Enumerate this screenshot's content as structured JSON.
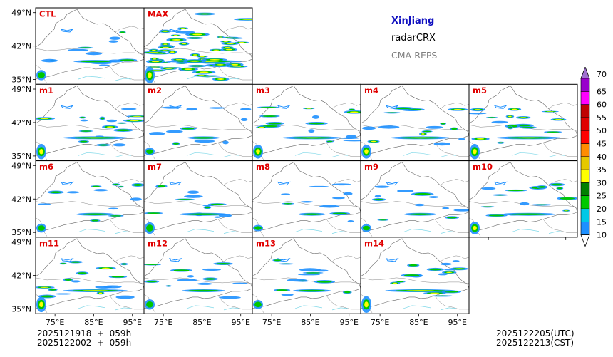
{
  "header": {
    "region": "XinJiang",
    "variable": "radarCRX",
    "model": "CMA-REPS"
  },
  "footer": {
    "init_line1": "2025121918  +  059h",
    "init_line2": "2025122002  +  059h",
    "valid_utc": "2025122205(UTC)",
    "valid_cst": "2025122213(CST)"
  },
  "chart_data": {
    "type": "heatmap",
    "title": "XinJiang radarCRX CMA-REPS",
    "panels": [
      {
        "label": "CTL",
        "row": 0,
        "col": 0,
        "intensity": 0.8
      },
      {
        "label": "MAX",
        "row": 0,
        "col": 1,
        "intensity": 2.6
      },
      {
        "label": "m1",
        "row": 1,
        "col": 0,
        "intensity": 1.2
      },
      {
        "label": "m2",
        "row": 1,
        "col": 1,
        "intensity": 0.6
      },
      {
        "label": "m3",
        "row": 1,
        "col": 2,
        "intensity": 1.1
      },
      {
        "label": "m4",
        "row": 1,
        "col": 3,
        "intensity": 1.1
      },
      {
        "label": "m5",
        "row": 1,
        "col": 4,
        "intensity": 1.2
      },
      {
        "label": "m6",
        "row": 2,
        "col": 0,
        "intensity": 0.7
      },
      {
        "label": "m7",
        "row": 2,
        "col": 1,
        "intensity": 0.9
      },
      {
        "label": "m8",
        "row": 2,
        "col": 2,
        "intensity": 0.5
      },
      {
        "label": "m9",
        "row": 2,
        "col": 3,
        "intensity": 0.6
      },
      {
        "label": "m10",
        "row": 2,
        "col": 4,
        "intensity": 1.0
      },
      {
        "label": "m11",
        "row": 3,
        "col": 0,
        "intensity": 1.2
      },
      {
        "label": "m12",
        "row": 3,
        "col": 1,
        "intensity": 0.8
      },
      {
        "label": "m13",
        "row": 3,
        "col": 2,
        "intensity": 0.7
      },
      {
        "label": "m14",
        "row": 3,
        "col": 3,
        "intensity": 1.3
      }
    ],
    "x_ticks": [
      "75°E",
      "85°E",
      "95°E"
    ],
    "y_ticks": [
      "49°N",
      "42°N",
      "35°N"
    ],
    "lon_range": [
      70,
      98
    ],
    "lat_range": [
      34,
      50
    ],
    "colorbar": {
      "levels": [
        10,
        15,
        20,
        25,
        30,
        35,
        40,
        45,
        50,
        55,
        60,
        65,
        70
      ],
      "colors": [
        "#1e90ff",
        "#00c8e6",
        "#00c800",
        "#008000",
        "#ffff00",
        "#e6c800",
        "#ff8c00",
        "#ff0000",
        "#e00000",
        "#c00000",
        "#ff00ff",
        "#9900cc",
        "#a070d0"
      ],
      "extend": "both"
    }
  }
}
